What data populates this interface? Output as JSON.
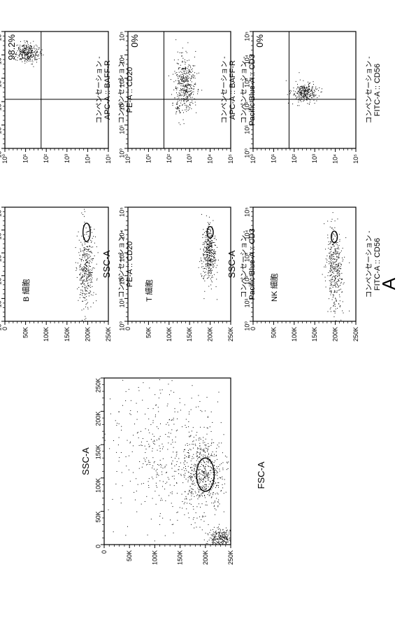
{
  "figure_letter": "A",
  "plots": [
    {
      "id": "main",
      "x_label": "FSC-A",
      "y_label": "SSC-A",
      "x_ticks": [
        "0",
        "50K",
        "100K",
        "150K",
        "200K",
        "250K"
      ],
      "y_ticks": [
        "0",
        "50K",
        "100K",
        "150K",
        "200K",
        "250K"
      ],
      "gate_label": ""
    },
    {
      "id": "b-cell-gate",
      "x_label_line1": "コンペンセーション -",
      "x_label_line2": "PE-A :: CD20",
      "y_label": "SSC-A",
      "x_ticks": [
        "10⁰",
        "10¹",
        "10²",
        "10³",
        "10⁴",
        "10⁵"
      ],
      "y_ticks": [
        "0",
        "50K",
        "100K",
        "150K",
        "200K",
        "250K"
      ],
      "gate_label": "B 細胞"
    },
    {
      "id": "t-cell-gate",
      "x_label_line1": "コンペンセーション -",
      "x_label_line2": "Pacific Blue-A :: CD3",
      "y_label": "SSC-A",
      "x_ticks": [
        "10⁰",
        "10¹",
        "10²",
        "10³",
        "10⁴",
        "10⁵"
      ],
      "y_ticks": [
        "0",
        "50K",
        "100K",
        "150K",
        "200K",
        "250K"
      ],
      "gate_label": "T 細胞"
    },
    {
      "id": "nk-cell-gate",
      "x_label_line1": "コンペンセーション -",
      "x_label_line2": "FITC-A :: CD56",
      "y_label": "SSC-A",
      "x_ticks": [
        "10⁰",
        "10¹",
        "10²",
        "10³",
        "10⁴",
        "10⁵"
      ],
      "y_ticks": [
        "0",
        "50K",
        "100K",
        "150K",
        "200K",
        "250K"
      ],
      "gate_label": "NK 細胞"
    },
    {
      "id": "b-cell-baffr",
      "x_label_line1": "コンペンセーション -",
      "x_label_line2": "PE-A :: CD20",
      "y_label_line1": "コンペンセーション -",
      "y_label_line2": "APC-A :: BAFF-R",
      "x_ticks": [
        "10⁰",
        "10¹",
        "10²",
        "10³",
        "10⁴",
        "10⁵"
      ],
      "y_ticks": [
        "10⁰",
        "10¹",
        "10²",
        "10³",
        "10⁴",
        "10⁵"
      ],
      "quadrant_pct": "98.2%"
    },
    {
      "id": "t-cell-baffr",
      "x_label_line1": "コンペンセーション -",
      "x_label_line2": "Pacific Blue-A :: CD3",
      "y_label_line1": "コンペンセーション -",
      "y_label_line2": "APC-A :: BAFF-R",
      "x_ticks": [
        "10⁰",
        "10¹",
        "10²",
        "10³",
        "10⁴",
        "10⁵"
      ],
      "y_ticks": [
        "10⁰",
        "10¹",
        "10²",
        "10³",
        "10⁴",
        "10⁵"
      ],
      "quadrant_pct": "0%"
    },
    {
      "id": "nk-cell-baffr",
      "x_label_line1": "コンペンセーション -",
      "x_label_line2": "FITC-A :: CD56",
      "y_label_line1": "コンペンセーション -",
      "y_label_line2": "APC-A :: BAFF-R",
      "x_ticks": [
        "10⁰",
        "10¹",
        "10²",
        "10³",
        "10⁴",
        "10⁵"
      ],
      "y_ticks": [
        "10⁰",
        "10¹",
        "10²",
        "10³",
        "10⁴",
        "10⁵"
      ],
      "quadrant_pct": "0%"
    }
  ]
}
